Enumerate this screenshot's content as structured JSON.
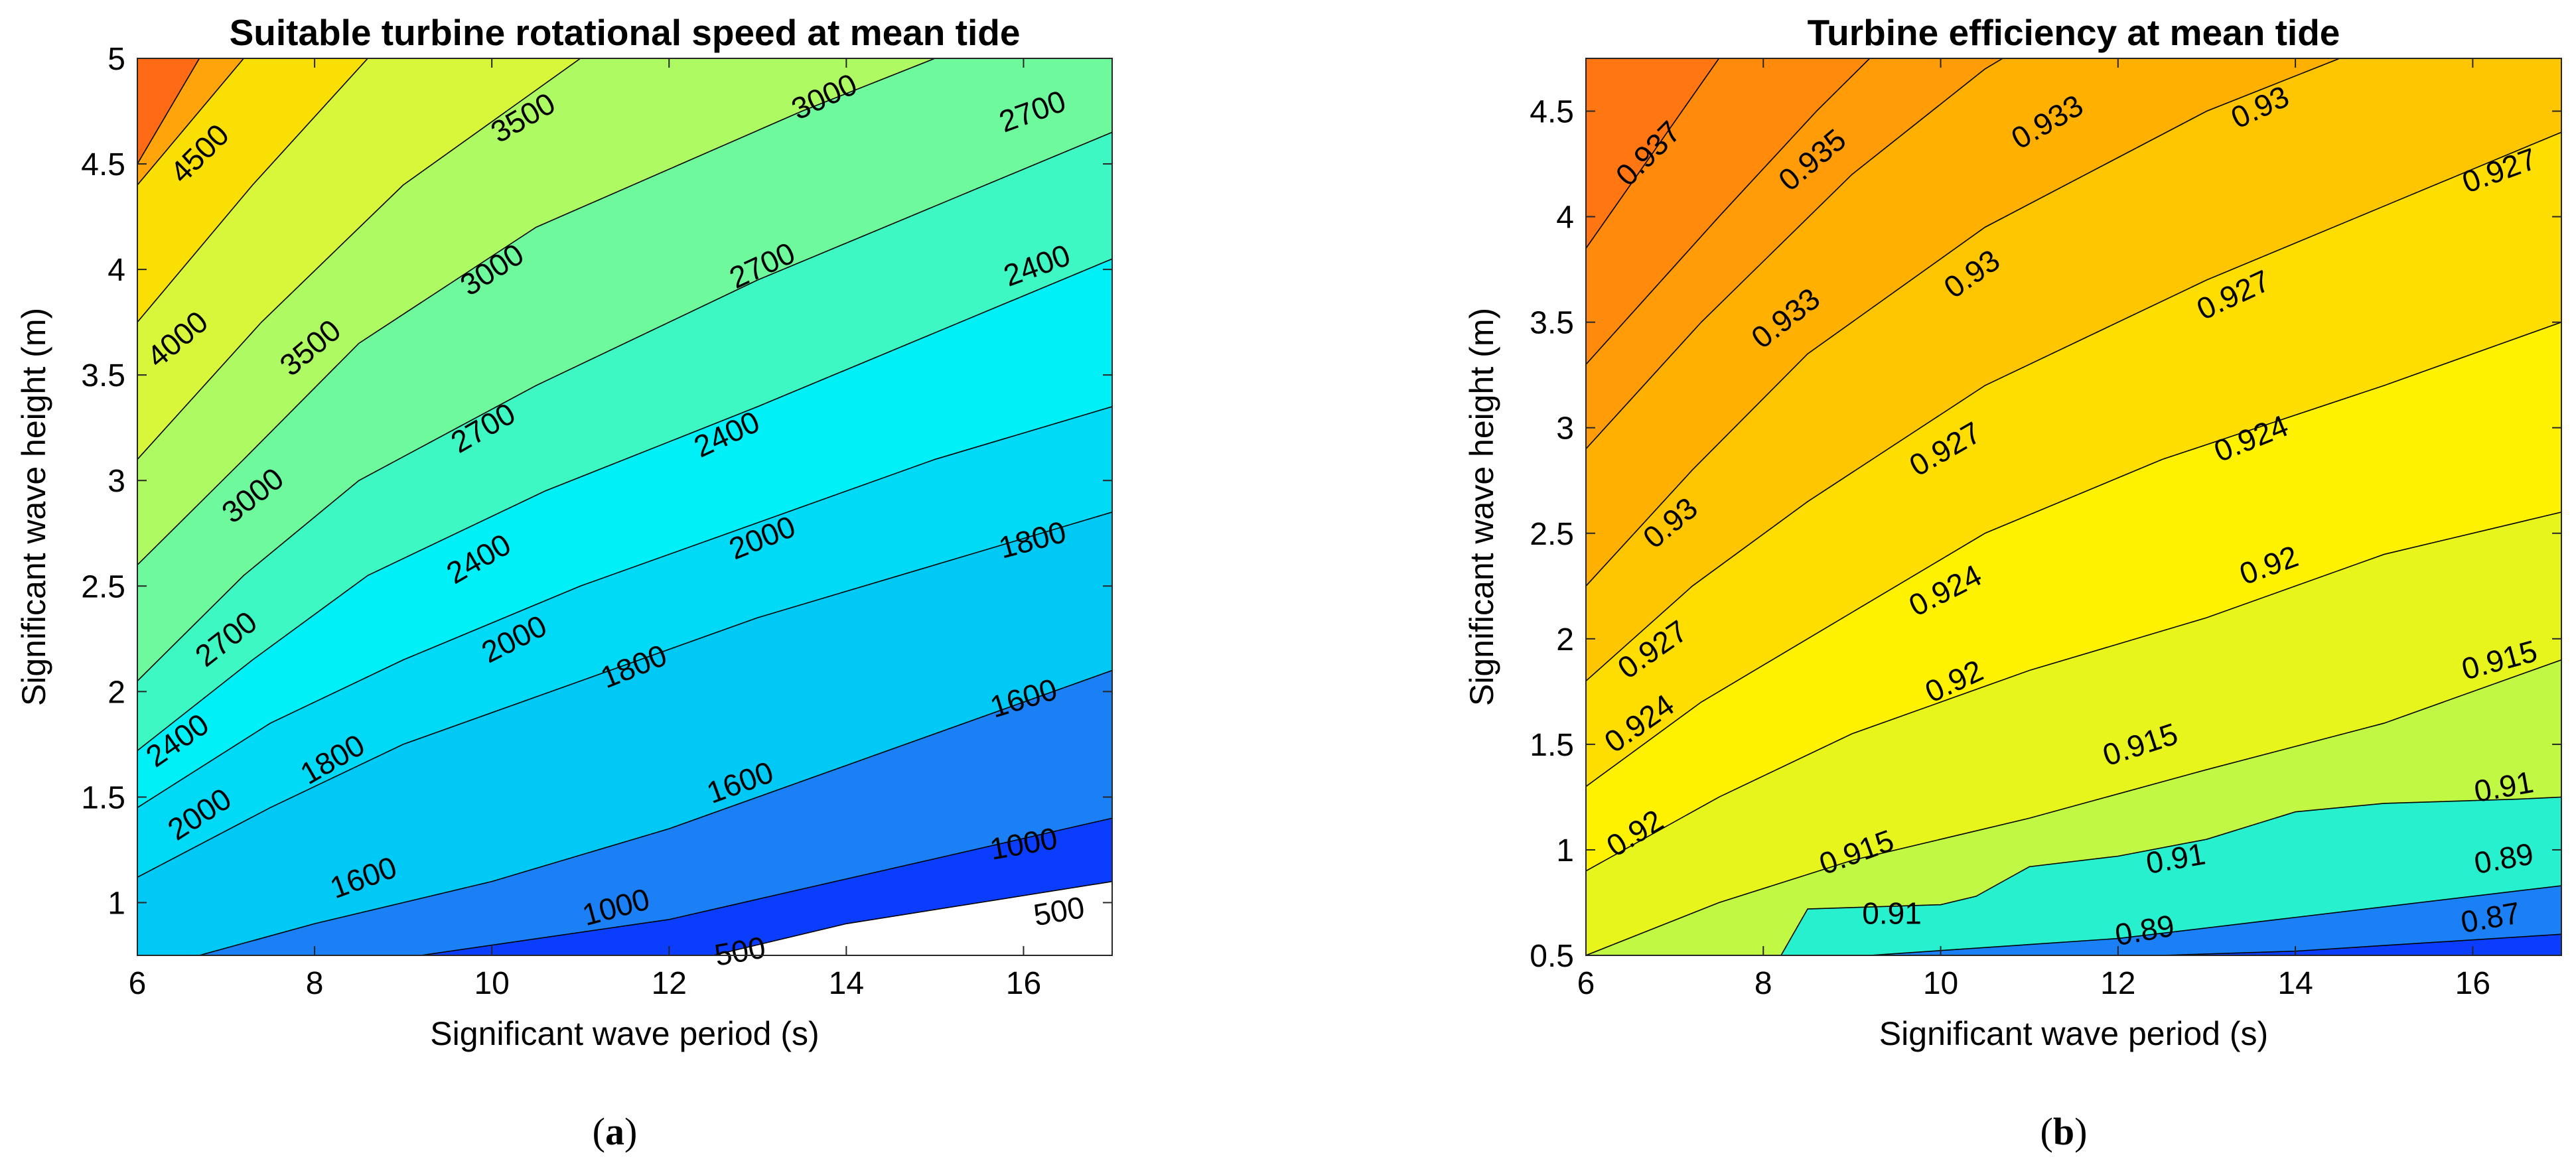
{
  "chart_data": [
    {
      "id": "a",
      "type": "contourf",
      "title": "Suitable turbine rotational speed at mean tide",
      "xlabel": "Significant wave period (s)",
      "ylabel": "Significant wave height (m)",
      "xlim": [
        6,
        17
      ],
      "ylim": [
        0.75,
        5
      ],
      "xticks": [
        6,
        8,
        10,
        12,
        14,
        16
      ],
      "yticks": [
        1,
        1.5,
        2,
        2.5,
        3,
        3.5,
        4,
        4.5,
        5
      ],
      "caption": {
        "open": "(",
        "letter": "a",
        "close": ")"
      },
      "bands": [
        {
          "label": "below 500",
          "color": "#ffffff"
        },
        {
          "label": "500-1000",
          "color": "#0b3dff"
        },
        {
          "label": "1000-1600",
          "color": "#1b80f5"
        },
        {
          "label": "1600-1800",
          "color": "#00c9f5"
        },
        {
          "label": "1800-2000",
          "color": "#00daf7"
        },
        {
          "label": "2000-2400",
          "color": "#00f0f8"
        },
        {
          "label": "2400-2700",
          "color": "#3ef8c4"
        },
        {
          "label": "2700-3000",
          "color": "#6ef99c"
        },
        {
          "label": "3000-3500",
          "color": "#aefa62"
        },
        {
          "label": "3500-4000",
          "color": "#d8f73a"
        },
        {
          "label": "4000-4500",
          "color": "#f9df04"
        },
        {
          "label": "4500-5000",
          "color": "#ffa40a"
        },
        {
          "label": "above 5000",
          "color": "#ff6b14"
        }
      ],
      "contour_lines": [
        {
          "level": "500",
          "points": [
            [
              12.5,
              0.75
            ],
            [
              14,
              0.9
            ],
            [
              17,
              1.1
            ]
          ]
        },
        {
          "level": "1000",
          "points": [
            [
              9.2,
              0.75
            ],
            [
              12,
              0.92
            ],
            [
              17,
              1.4
            ]
          ]
        },
        {
          "level": "1600",
          "points": [
            [
              6.7,
              0.75
            ],
            [
              8,
              0.9
            ],
            [
              10,
              1.1
            ],
            [
              12,
              1.35
            ],
            [
              14,
              1.65
            ],
            [
              17,
              2.1
            ]
          ]
        },
        {
          "level": "1800",
          "points": [
            [
              6,
              1.12
            ],
            [
              7.5,
              1.45
            ],
            [
              9,
              1.75
            ],
            [
              11,
              2.05
            ],
            [
              13,
              2.35
            ],
            [
              15,
              2.6
            ],
            [
              17,
              2.85
            ]
          ]
        },
        {
          "level": "2000",
          "points": [
            [
              6,
              1.45
            ],
            [
              7.5,
              1.85
            ],
            [
              9,
              2.15
            ],
            [
              11,
              2.5
            ],
            [
              13,
              2.8
            ],
            [
              15,
              3.1
            ],
            [
              17,
              3.35
            ]
          ]
        },
        {
          "level": "2400",
          "points": [
            [
              6,
              1.72
            ],
            [
              7.3,
              2.15
            ],
            [
              8.6,
              2.55
            ],
            [
              10.6,
              2.95
            ],
            [
              13,
              3.35
            ],
            [
              15,
              3.7
            ],
            [
              17,
              4.05
            ]
          ]
        },
        {
          "level": "2700",
          "points": [
            [
              6,
              2.05
            ],
            [
              7.2,
              2.55
            ],
            [
              8.5,
              3.0
            ],
            [
              10.5,
              3.45
            ],
            [
              13,
              3.95
            ],
            [
              15,
              4.3
            ],
            [
              17,
              4.65
            ]
          ]
        },
        {
          "level": "3000",
          "points": [
            [
              6,
              2.6
            ],
            [
              7.2,
              3.1
            ],
            [
              8.5,
              3.65
            ],
            [
              10.5,
              4.2
            ],
            [
              13.5,
              4.75
            ],
            [
              15,
              5.0
            ]
          ]
        },
        {
          "level": "3500",
          "points": [
            [
              6,
              3.1
            ],
            [
              7.4,
              3.75
            ],
            [
              9,
              4.4
            ],
            [
              10.5,
              4.85
            ],
            [
              11,
              5.0
            ]
          ]
        },
        {
          "level": "4000",
          "points": [
            [
              6,
              3.75
            ],
            [
              7.3,
              4.4
            ],
            [
              8.6,
              5.0
            ]
          ]
        },
        {
          "level": "4500",
          "points": [
            [
              6,
              4.4
            ],
            [
              7.2,
              5.0
            ]
          ]
        },
        {
          "level": "5000",
          "points": [
            [
              6,
              4.5
            ],
            [
              6.7,
              5.0
            ]
          ]
        }
      ],
      "contour_labels": [
        {
          "text": "4500",
          "x": 6.7,
          "y": 4.55,
          "angle": -45
        },
        {
          "text": "4000",
          "x": 6.45,
          "y": 3.67,
          "angle": -40
        },
        {
          "text": "3500",
          "x": 7.95,
          "y": 3.63,
          "angle": -40
        },
        {
          "text": "3500",
          "x": 10.35,
          "y": 4.72,
          "angle": -30
        },
        {
          "text": "3000",
          "x": 7.3,
          "y": 2.93,
          "angle": -38
        },
        {
          "text": "3000",
          "x": 10.0,
          "y": 4.0,
          "angle": -33
        },
        {
          "text": "3000",
          "x": 13.75,
          "y": 4.82,
          "angle": -25
        },
        {
          "text": "2700",
          "x": 7.0,
          "y": 2.25,
          "angle": -38
        },
        {
          "text": "2700",
          "x": 9.9,
          "y": 3.25,
          "angle": -30
        },
        {
          "text": "2700",
          "x": 13.05,
          "y": 4.02,
          "angle": -25
        },
        {
          "text": "2700",
          "x": 16.1,
          "y": 4.75,
          "angle": -20
        },
        {
          "text": "2400",
          "x": 6.45,
          "y": 1.77,
          "angle": -35
        },
        {
          "text": "2400",
          "x": 9.85,
          "y": 2.63,
          "angle": -30
        },
        {
          "text": "2400",
          "x": 12.65,
          "y": 3.22,
          "angle": -25
        },
        {
          "text": "2400",
          "x": 16.15,
          "y": 4.02,
          "angle": -20
        },
        {
          "text": "2000",
          "x": 6.7,
          "y": 1.42,
          "angle": -33
        },
        {
          "text": "2000",
          "x": 10.25,
          "y": 2.25,
          "angle": -27
        },
        {
          "text": "2000",
          "x": 13.05,
          "y": 2.73,
          "angle": -22
        },
        {
          "text": "1800",
          "x": 8.2,
          "y": 1.68,
          "angle": -30
        },
        {
          "text": "1800",
          "x": 11.6,
          "y": 2.12,
          "angle": -22
        },
        {
          "text": "1800",
          "x": 16.1,
          "y": 2.72,
          "angle": -15
        },
        {
          "text": "1600",
          "x": 8.55,
          "y": 1.12,
          "angle": -20
        },
        {
          "text": "1600",
          "x": 12.8,
          "y": 1.57,
          "angle": -20
        },
        {
          "text": "1600",
          "x": 16.0,
          "y": 1.97,
          "angle": -17
        },
        {
          "text": "1000",
          "x": 11.4,
          "y": 0.98,
          "angle": -15
        },
        {
          "text": "1000",
          "x": 16.0,
          "y": 1.28,
          "angle": -10
        },
        {
          "text": "500",
          "x": 12.8,
          "y": 0.77,
          "angle": -10
        },
        {
          "text": "500",
          "x": 16.4,
          "y": 0.96,
          "angle": -10
        }
      ]
    },
    {
      "id": "b",
      "type": "contourf",
      "title": "Turbine efficiency at mean tide",
      "xlabel": "Significant wave period (s)",
      "ylabel": "Significant wave height (m)",
      "xlim": [
        6,
        17
      ],
      "ylim": [
        0.5,
        4.75
      ],
      "xticks": [
        6,
        8,
        10,
        12,
        14,
        16
      ],
      "yticks": [
        0.5,
        1,
        1.5,
        2,
        2.5,
        3,
        3.5,
        4,
        4.5
      ],
      "caption": {
        "open": "(",
        "letter": "b",
        "close": ")"
      },
      "bands": [
        {
          "label": "below 0.87",
          "color": "#0b3dff"
        },
        {
          "label": "0.87-0.89",
          "color": "#1b80f5"
        },
        {
          "label": "0.89-0.91",
          "color": "#27f0cf"
        },
        {
          "label": "0.91-0.915",
          "color": "#c0f843"
        },
        {
          "label": "0.915-0.92",
          "color": "#e7f51c"
        },
        {
          "label": "0.92-0.924",
          "color": "#fef200"
        },
        {
          "label": "0.924-0.927",
          "color": "#fede00"
        },
        {
          "label": "0.927-0.93",
          "color": "#fec600"
        },
        {
          "label": "0.93-0.933",
          "color": "#ffb000"
        },
        {
          "label": "0.933-0.935",
          "color": "#ff9c07"
        },
        {
          "label": "0.935-0.937",
          "color": "#ff8a0c"
        },
        {
          "label": "above 0.937",
          "color": "#ff7612"
        }
      ],
      "contour_lines": [
        {
          "level": "0.87",
          "points": [
            [
              12.5,
              0.5
            ],
            [
              14,
              0.52
            ],
            [
              17,
              0.6
            ]
          ]
        },
        {
          "level": "0.89",
          "points": [
            [
              9.2,
              0.5
            ],
            [
              12,
              0.58
            ],
            [
              14,
              0.68
            ],
            [
              17,
              0.83
            ]
          ]
        },
        {
          "level": "0.91",
          "points": [
            [
              8.2,
              0.5
            ],
            [
              8.5,
              0.72
            ],
            [
              10,
              0.74
            ],
            [
              10.4,
              0.78
            ],
            [
              11.0,
              0.92
            ],
            [
              12,
              0.97
            ],
            [
              13,
              1.05
            ],
            [
              14,
              1.18
            ],
            [
              15,
              1.22
            ],
            [
              16.5,
              1.24
            ],
            [
              17,
              1.25
            ]
          ]
        },
        {
          "level": "0.915",
          "points": [
            [
              6,
              0.5
            ],
            [
              7.5,
              0.75
            ],
            [
              9,
              0.95
            ],
            [
              11,
              1.15
            ],
            [
              13,
              1.38
            ],
            [
              15,
              1.6
            ],
            [
              17,
              1.9
            ]
          ]
        },
        {
          "level": "0.92",
          "points": [
            [
              6,
              0.9
            ],
            [
              7.5,
              1.25
            ],
            [
              9,
              1.55
            ],
            [
              11,
              1.85
            ],
            [
              13,
              2.1
            ],
            [
              15,
              2.4
            ],
            [
              17,
              2.6
            ]
          ]
        },
        {
          "level": "0.924",
          "points": [
            [
              6,
              1.3
            ],
            [
              7.3,
              1.7
            ],
            [
              8.7,
              2.05
            ],
            [
              10.5,
              2.5
            ],
            [
              12.5,
              2.85
            ],
            [
              15,
              3.2
            ],
            [
              17,
              3.5
            ]
          ]
        },
        {
          "level": "0.927",
          "points": [
            [
              6,
              1.8
            ],
            [
              7.2,
              2.25
            ],
            [
              8.5,
              2.65
            ],
            [
              10.5,
              3.2
            ],
            [
              13,
              3.7
            ],
            [
              15,
              4.05
            ],
            [
              17,
              4.4
            ]
          ]
        },
        {
          "level": "0.93",
          "points": [
            [
              6,
              2.25
            ],
            [
              7.2,
              2.8
            ],
            [
              8.5,
              3.35
            ],
            [
              10.5,
              3.95
            ],
            [
              13,
              4.5
            ],
            [
              14.5,
              4.75
            ]
          ]
        },
        {
          "level": "0.933",
          "points": [
            [
              6,
              2.9
            ],
            [
              7.3,
              3.5
            ],
            [
              9,
              4.2
            ],
            [
              10.5,
              4.7
            ],
            [
              10.7,
              4.75
            ]
          ]
        },
        {
          "level": "0.935",
          "points": [
            [
              6,
              3.3
            ],
            [
              7.5,
              4.0
            ],
            [
              8.6,
              4.5
            ],
            [
              9.2,
              4.75
            ]
          ]
        },
        {
          "level": "0.937",
          "points": [
            [
              6,
              3.85
            ],
            [
              7.0,
              4.45
            ],
            [
              7.5,
              4.75
            ]
          ]
        }
      ],
      "contour_labels": [
        {
          "text": "0.937",
          "x": 6.7,
          "y": 4.3,
          "angle": -45
        },
        {
          "text": "0.935",
          "x": 8.55,
          "y": 4.27,
          "angle": -40
        },
        {
          "text": "0.933",
          "x": 8.25,
          "y": 3.52,
          "angle": -38
        },
        {
          "text": "0.933",
          "x": 11.2,
          "y": 4.45,
          "angle": -30
        },
        {
          "text": "0.93",
          "x": 6.95,
          "y": 2.55,
          "angle": -40
        },
        {
          "text": "0.93",
          "x": 10.35,
          "y": 3.73,
          "angle": -35
        },
        {
          "text": "0.93",
          "x": 13.6,
          "y": 4.52,
          "angle": -25
        },
        {
          "text": "0.927",
          "x": 6.75,
          "y": 1.95,
          "angle": -35
        },
        {
          "text": "0.927",
          "x": 10.05,
          "y": 2.9,
          "angle": -30
        },
        {
          "text": "0.927",
          "x": 13.3,
          "y": 3.63,
          "angle": -25
        },
        {
          "text": "0.927",
          "x": 16.3,
          "y": 4.22,
          "angle": -20
        },
        {
          "text": "0.924",
          "x": 6.6,
          "y": 1.6,
          "angle": -35
        },
        {
          "text": "0.924",
          "x": 10.05,
          "y": 2.23,
          "angle": -27
        },
        {
          "text": "0.924",
          "x": 13.5,
          "y": 2.95,
          "angle": -22
        },
        {
          "text": "0.92",
          "x": 6.55,
          "y": 1.08,
          "angle": -32
        },
        {
          "text": "0.92",
          "x": 10.15,
          "y": 1.8,
          "angle": -25
        },
        {
          "text": "0.92",
          "x": 13.7,
          "y": 2.35,
          "angle": -20
        },
        {
          "text": "0.915",
          "x": 9.05,
          "y": 0.99,
          "angle": -20
        },
        {
          "text": "0.915",
          "x": 12.25,
          "y": 1.5,
          "angle": -18
        },
        {
          "text": "0.915",
          "x": 16.3,
          "y": 1.9,
          "angle": -15
        },
        {
          "text": "0.91",
          "x": 9.45,
          "y": 0.7,
          "angle": 0
        },
        {
          "text": "0.91",
          "x": 12.65,
          "y": 0.96,
          "angle": -10
        },
        {
          "text": "0.91",
          "x": 16.35,
          "y": 1.3,
          "angle": -10
        },
        {
          "text": "0.89",
          "x": 12.3,
          "y": 0.62,
          "angle": -10
        },
        {
          "text": "0.89",
          "x": 16.35,
          "y": 0.96,
          "angle": -10
        },
        {
          "text": "0.87",
          "x": 16.2,
          "y": 0.68,
          "angle": -10
        }
      ]
    }
  ]
}
